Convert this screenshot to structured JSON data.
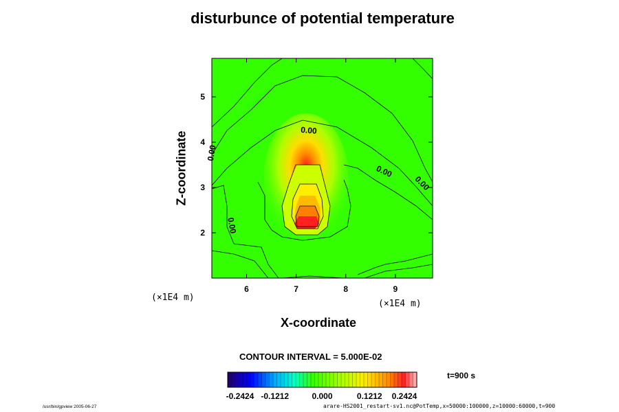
{
  "title": "disturbunce of potential temperature",
  "contour_interval": "CONTOUR INTERVAL = 5.000E-02",
  "time_label": "t=900 s",
  "footer": {
    "left": "/usr/bin/gpview 2005-06-27",
    "right": "arare-HS2001_restart-sv1.nc@PotTemp,x=50000:100000,z=10000:60000,t=900"
  },
  "colors": {
    "background_field": "#33ff00",
    "min_color": "#220066",
    "max_color": "#ff2020"
  },
  "chart_data": {
    "type": "heatmap",
    "title": "disturbunce of potential temperature",
    "xlabel": "X-coordinate",
    "ylabel": "Z-coordinate",
    "x_unit": "(×1E4 m)",
    "y_unit": "(×1E4 m)",
    "xlim": [
      5.3,
      9.75
    ],
    "ylim": [
      1.0,
      5.85
    ],
    "x_ticks": [
      "6",
      "7",
      "8",
      "9"
    ],
    "y_ticks": [
      "2",
      "3",
      "4",
      "5"
    ],
    "x_tick_values": [
      6,
      7,
      8,
      9
    ],
    "y_tick_values": [
      2,
      3,
      4,
      5
    ],
    "contour_labels": [
      {
        "text": "0.00",
        "x": 7.25,
        "y": 4.2,
        "angle": 5
      },
      {
        "text": "0.00",
        "x": 5.35,
        "y": 3.75,
        "angle": -80
      },
      {
        "text": "0.00",
        "x": 8.75,
        "y": 3.3,
        "angle": 25
      },
      {
        "text": "0.00",
        "x": 9.5,
        "y": 3.05,
        "angle": 45
      },
      {
        "text": "0.00",
        "x": 5.65,
        "y": 2.15,
        "angle": 80
      }
    ],
    "colorbar": {
      "min": -0.2424,
      "max": 0.2424,
      "tick_labels": [
        "-0.2424",
        "-0.1212",
        "0.000",
        "0.1212",
        "0.2424"
      ],
      "tick_values": [
        -0.2424,
        -0.1212,
        0.0,
        0.1212,
        0.2424
      ]
    },
    "anomaly": {
      "center_x": 7.25,
      "center_z": 2.3,
      "peak": 0.24,
      "background": 0.0,
      "contour_interval": 0.05
    }
  }
}
